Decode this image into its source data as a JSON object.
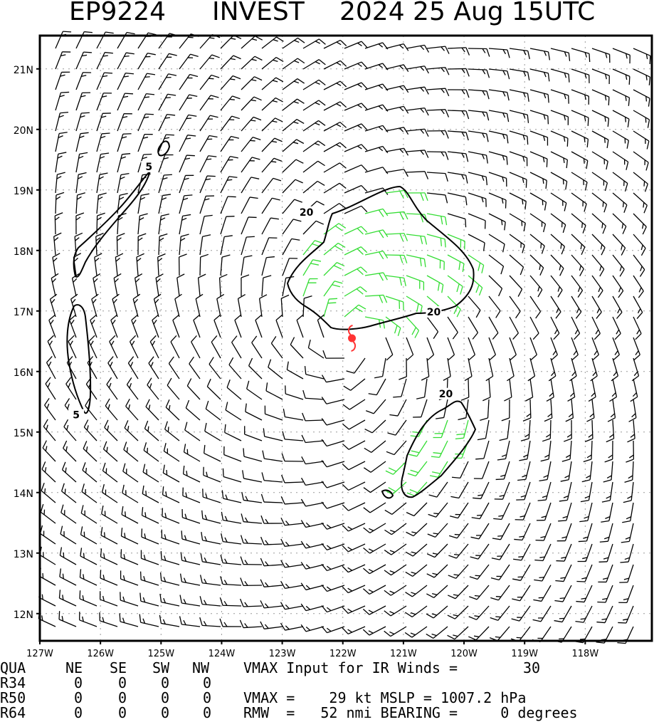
{
  "title": {
    "storm_id": "EP9224",
    "storm_name": "INVEST",
    "datetime": "2024 25 Aug 15UTC"
  },
  "map": {
    "lat_labels": [
      "21N",
      "20N",
      "19N",
      "18N",
      "17N",
      "16N",
      "15N",
      "14N",
      "13N",
      "12N"
    ],
    "lon_labels": [
      "127W",
      "126W",
      "125W",
      "124W",
      "123W",
      "122W",
      "121W",
      "120W",
      "119W",
      "118W"
    ],
    "lat_range": [
      11.55,
      21.55
    ],
    "lon_range": [
      -127.0,
      -116.9
    ],
    "grid": "dotted",
    "contour_labels": [
      {
        "text": "5",
        "lon": -125.2,
        "lat": 19.35
      },
      {
        "text": "5",
        "lon": -126.4,
        "lat": 15.25
      },
      {
        "text": "20",
        "lon": -122.6,
        "lat": 18.6
      },
      {
        "text": "20",
        "lon": -120.5,
        "lat": 16.95
      },
      {
        "text": "20",
        "lon": -120.3,
        "lat": 15.6
      }
    ],
    "storm_center": {
      "lon": -121.85,
      "lat": 16.55,
      "symbol": "tropical-storm-icon",
      "color": "#ff3333"
    },
    "colors": {
      "barb": "#000000",
      "barb_strong": "#33dd33",
      "contour": "#000000",
      "storm": "#ff3333",
      "grid": "#999999"
    }
  },
  "footer": {
    "header": {
      "qua": "QUA",
      "ne": "NE",
      "se": "SE",
      "sw": "SW",
      "nw": "NW",
      "vmax_input_label": "VMAX Input for IR Winds =",
      "vmax_input_value": "30"
    },
    "rows": [
      {
        "label": "R34",
        "ne": "0",
        "se": "0",
        "sw": "0",
        "nw": "0"
      },
      {
        "label": "R50",
        "ne": "0",
        "se": "0",
        "sw": "0",
        "nw": "0"
      },
      {
        "label": "R64",
        "ne": "0",
        "se": "0",
        "sw": "0",
        "nw": "0"
      }
    ],
    "vmax_line": "VMAX =    29 kt MSLP = 1007.2 hPa",
    "rmw_line": "RMW  =   52 nmi BEARING =     0 degrees"
  }
}
